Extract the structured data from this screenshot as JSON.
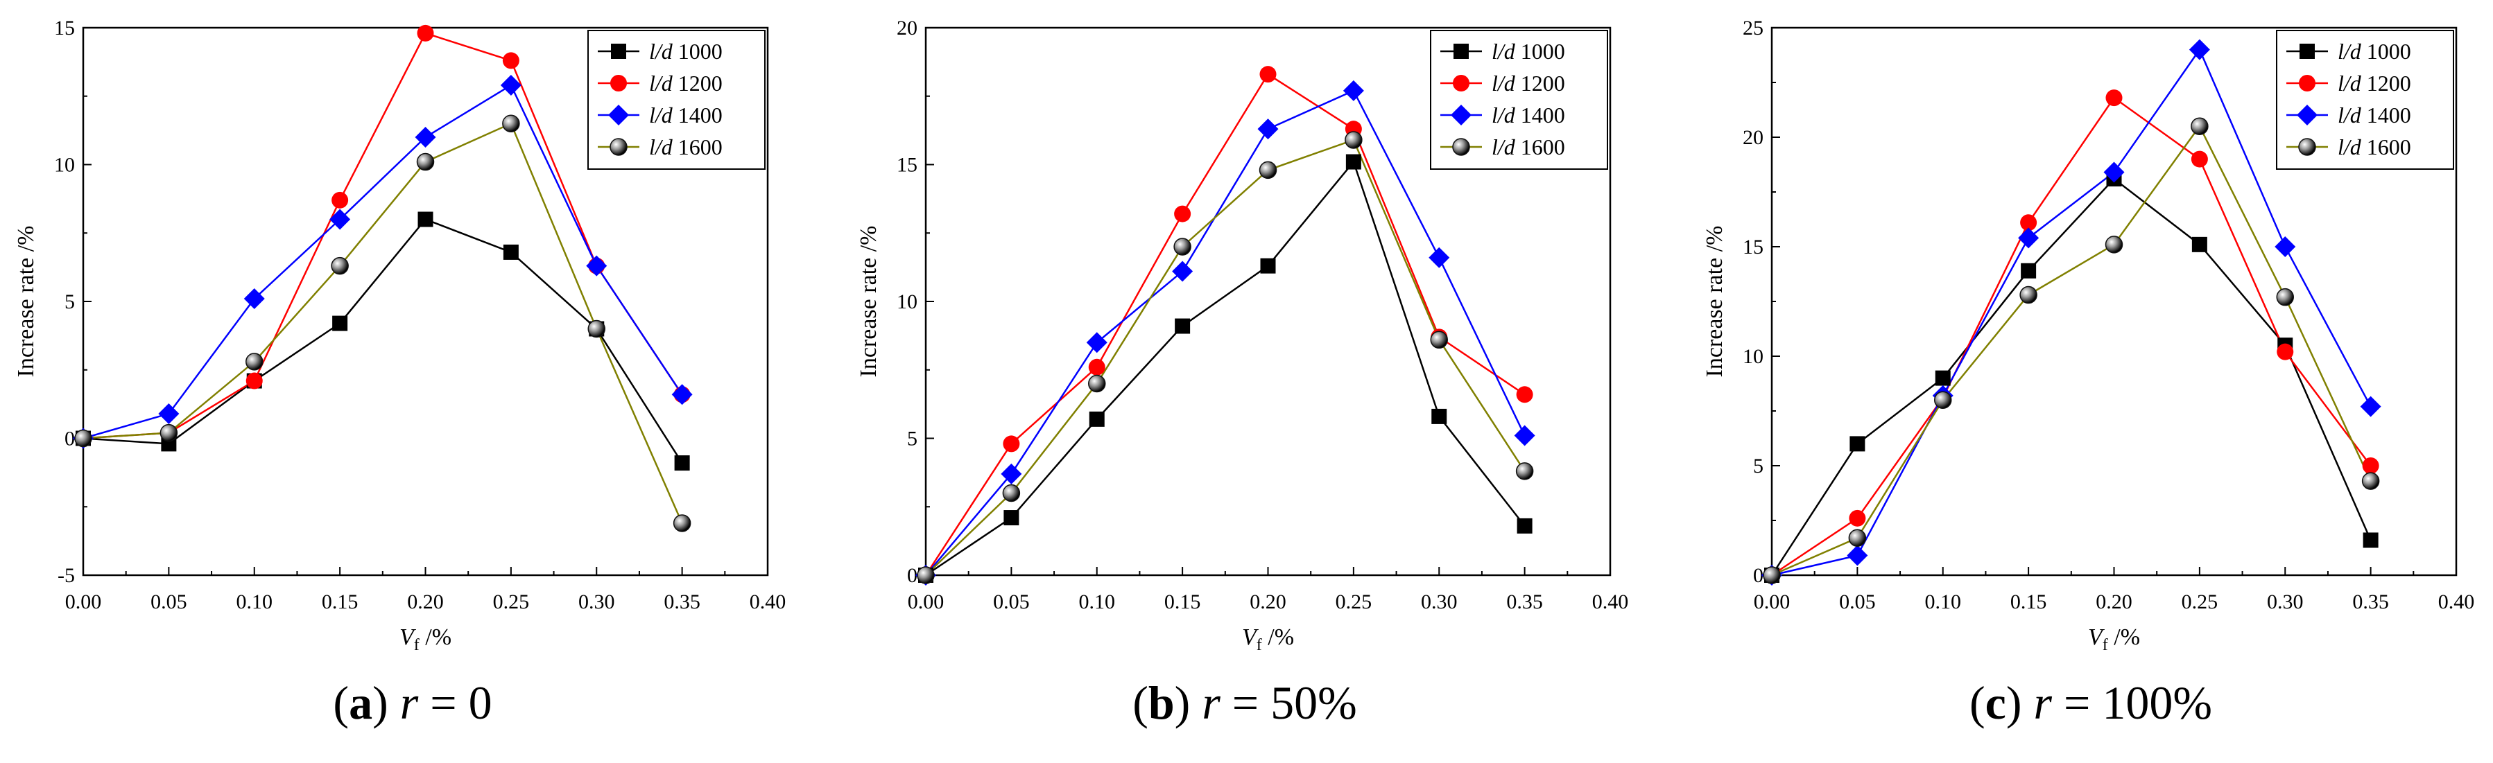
{
  "chart_data": [
    {
      "type": "line",
      "panel_label": "a",
      "caption_symbol": "r",
      "caption_eq": " = ",
      "caption_value": "0",
      "xlabel_main": "V",
      "xlabel_sub": "f",
      "xlabel_unit": " /%",
      "ylabel": "Increase rate /%",
      "x": [
        0.0,
        0.05,
        0.1,
        0.15,
        0.2,
        0.25,
        0.3,
        0.35
      ],
      "xlim": [
        0.0,
        0.4
      ],
      "ylim": [
        -5,
        15
      ],
      "xticks": [
        "0.00",
        "0.05",
        "0.10",
        "0.15",
        "0.20",
        "0.25",
        "0.30",
        "0.35",
        "0.40"
      ],
      "yticks": [
        "-5",
        "0",
        "5",
        "10",
        "15"
      ],
      "legend_position": "top-right",
      "series": [
        {
          "name_prefix": "l/d",
          "name_value": "1000",
          "color": "#000000",
          "marker": "square",
          "values": [
            0,
            -0.2,
            2.1,
            4.2,
            8.0,
            6.8,
            4.0,
            -0.9
          ]
        },
        {
          "name_prefix": "l/d",
          "name_value": "1200",
          "color": "#ff0000",
          "marker": "circle",
          "values": [
            0,
            0.2,
            2.1,
            8.7,
            14.8,
            13.8,
            6.3,
            1.6
          ]
        },
        {
          "name_prefix": "l/d",
          "name_value": "1400",
          "color": "#0000ff",
          "marker": "diamond",
          "values": [
            0,
            0.9,
            5.1,
            8.0,
            11.0,
            12.9,
            6.3,
            1.6
          ]
        },
        {
          "name_prefix": "l/d",
          "name_value": "1600",
          "color": "#808000",
          "marker": "sphere",
          "values": [
            0,
            0.2,
            2.8,
            6.3,
            10.1,
            11.5,
            4.0,
            -3.1
          ]
        }
      ]
    },
    {
      "type": "line",
      "panel_label": "b",
      "caption_symbol": "r",
      "caption_eq": " = ",
      "caption_value": "50%",
      "xlabel_main": "V",
      "xlabel_sub": "f",
      "xlabel_unit": " /%",
      "ylabel": "Increase rate /%",
      "x": [
        0.0,
        0.05,
        0.1,
        0.15,
        0.2,
        0.25,
        0.3,
        0.35
      ],
      "xlim": [
        0.0,
        0.4
      ],
      "ylim": [
        0,
        20
      ],
      "xticks": [
        "0.00",
        "0.05",
        "0.10",
        "0.15",
        "0.20",
        "0.25",
        "0.30",
        "0.35",
        "0.40"
      ],
      "yticks": [
        "0",
        "5",
        "10",
        "15",
        "20"
      ],
      "legend_position": "top-right",
      "series": [
        {
          "name_prefix": "l/d",
          "name_value": "1000",
          "color": "#000000",
          "marker": "square",
          "values": [
            0,
            2.1,
            5.7,
            9.1,
            11.3,
            15.1,
            5.8,
            1.8
          ]
        },
        {
          "name_prefix": "l/d",
          "name_value": "1200",
          "color": "#ff0000",
          "marker": "circle",
          "values": [
            0,
            4.8,
            7.6,
            13.2,
            18.3,
            16.3,
            8.7,
            6.6
          ]
        },
        {
          "name_prefix": "l/d",
          "name_value": "1400",
          "color": "#0000ff",
          "marker": "diamond",
          "values": [
            0,
            3.7,
            8.5,
            11.1,
            16.3,
            17.7,
            11.6,
            5.1
          ]
        },
        {
          "name_prefix": "l/d",
          "name_value": "1600",
          "color": "#808000",
          "marker": "sphere",
          "values": [
            0,
            3.0,
            7.0,
            12.0,
            14.8,
            15.9,
            8.6,
            3.8
          ]
        }
      ]
    },
    {
      "type": "line",
      "panel_label": "c",
      "caption_symbol": "r",
      "caption_eq": " = ",
      "caption_value": "100%",
      "xlabel_main": "V",
      "xlabel_sub": "f",
      "xlabel_unit": " /%",
      "ylabel": "Increase rate /%",
      "x": [
        0.0,
        0.05,
        0.1,
        0.15,
        0.2,
        0.25,
        0.3,
        0.35
      ],
      "xlim": [
        0.0,
        0.4
      ],
      "ylim": [
        0,
        25
      ],
      "xticks": [
        "0.00",
        "0.05",
        "0.10",
        "0.15",
        "0.20",
        "0.25",
        "0.30",
        "0.35",
        "0.40"
      ],
      "yticks": [
        "0",
        "5",
        "10",
        "15",
        "20",
        "25"
      ],
      "legend_position": "top-right",
      "series": [
        {
          "name_prefix": "l/d",
          "name_value": "1000",
          "color": "#000000",
          "marker": "square",
          "values": [
            0,
            6.0,
            9.0,
            13.9,
            18.1,
            15.1,
            10.5,
            1.6
          ]
        },
        {
          "name_prefix": "l/d",
          "name_value": "1200",
          "color": "#ff0000",
          "marker": "circle",
          "values": [
            0,
            2.6,
            8.1,
            16.1,
            21.8,
            19.0,
            10.2,
            5.0
          ]
        },
        {
          "name_prefix": "l/d",
          "name_value": "1400",
          "color": "#0000ff",
          "marker": "diamond",
          "values": [
            0,
            0.9,
            8.2,
            15.4,
            18.4,
            24.0,
            15.0,
            7.7
          ]
        },
        {
          "name_prefix": "l/d",
          "name_value": "1600",
          "color": "#808000",
          "marker": "sphere",
          "values": [
            0,
            1.7,
            8.0,
            12.8,
            15.1,
            20.5,
            12.7,
            4.3
          ]
        }
      ]
    }
  ]
}
